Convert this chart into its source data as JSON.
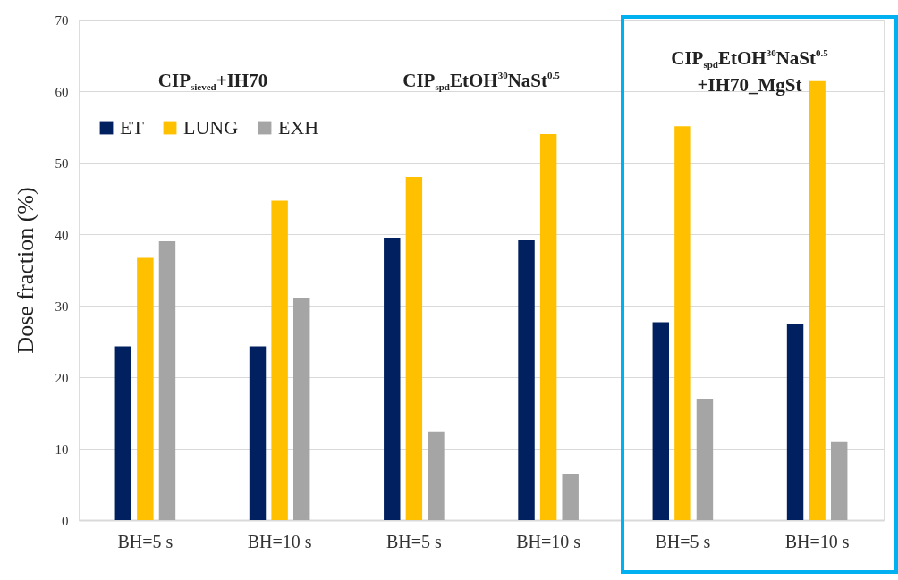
{
  "chart_data": {
    "type": "bar",
    "ylabel": "Dose fraction (%)",
    "categories": [
      "BH=5 s",
      "BH=10 s",
      "BH=5 s",
      "BH=10 s",
      "BH=5 s",
      "BH=10 s"
    ],
    "series": [
      {
        "name": "ET",
        "color": "#002060",
        "values": [
          24.3,
          24.3,
          39.5,
          39.2,
          27.7,
          27.5
        ]
      },
      {
        "name": "LUNG",
        "color": "#ffc000",
        "values": [
          36.7,
          44.7,
          48.0,
          54.0,
          55.1,
          61.4
        ]
      },
      {
        "name": "EXH",
        "color": "#a5a5a5",
        "values": [
          39.0,
          31.1,
          12.4,
          6.5,
          17.0,
          10.9
        ]
      }
    ],
    "annotations": [
      "CIP$_{sieved}$+IH70",
      "CIP$_{spd}$EtOH$^{30}$NaSt$^{0.5}$",
      "CIP$_{spd}$EtOH$^{30}$NaSt$^{0.5}$\n+IH70_MgSt"
    ],
    "ylim": [
      0,
      70
    ],
    "yticks": [
      0,
      10,
      20,
      30,
      40,
      50,
      60,
      70
    ],
    "grid": "y",
    "legend": "top left"
  }
}
